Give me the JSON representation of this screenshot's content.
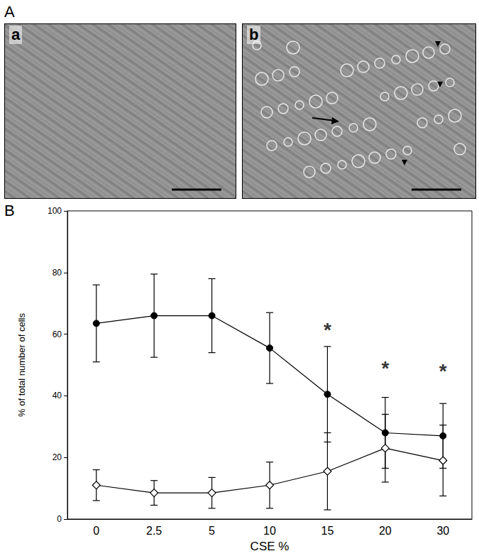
{
  "figure": {
    "panel_labels": [
      "A",
      "B"
    ],
    "image_labels": [
      "a",
      "b"
    ]
  },
  "chart_data": {
    "type": "line",
    "categories": [
      "0",
      "2.5",
      "5",
      "10",
      "15",
      "20",
      "30"
    ],
    "x_label": "CSE %",
    "y_label": "% of total number of cells",
    "ylim": [
      0,
      100
    ],
    "yticks": [
      0,
      20,
      40,
      60,
      80,
      100
    ],
    "grid": false,
    "series": [
      {
        "color": "#000000",
        "marker": "circle",
        "line_style": "solid",
        "values": [
          63.5,
          66,
          66,
          55.5,
          40.5,
          28,
          27
        ],
        "errors": [
          12.5,
          13.5,
          12,
          11.5,
          15.5,
          11.5,
          10.5
        ]
      },
      {
        "color": "#000000",
        "marker": "open_diamond",
        "line_style": "solid",
        "values": [
          11,
          8.5,
          8.5,
          11,
          15.5,
          23,
          19
        ],
        "errors": [
          5,
          4,
          5,
          7.5,
          12.5,
          11,
          11.5
        ]
      }
    ],
    "annotations": [
      {
        "x": "15",
        "y": 61.5,
        "text": "*"
      },
      {
        "x": "20",
        "y": 49,
        "text": "*"
      },
      {
        "x": "30",
        "y": 48,
        "text": "*"
      }
    ]
  }
}
